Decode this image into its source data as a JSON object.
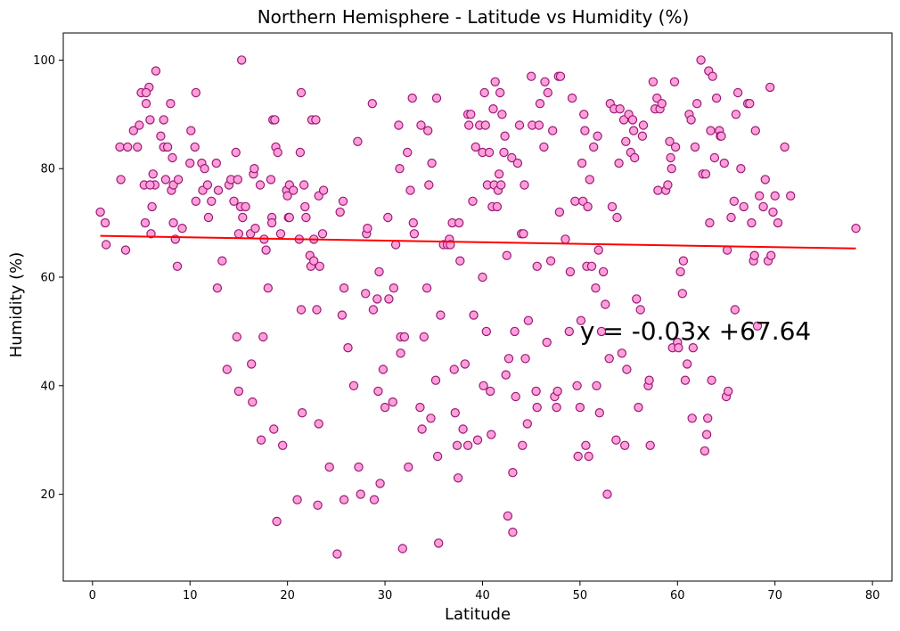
{
  "chart_data": {
    "type": "scatter",
    "title": "Northern Hemisphere - Latitude vs Humidity (%)",
    "xlabel": "Latitude",
    "ylabel": "Humidity (%)",
    "xlim": [
      -3,
      82
    ],
    "ylim": [
      4,
      105
    ],
    "xticks": [
      0,
      10,
      20,
      30,
      40,
      50,
      60,
      70,
      80
    ],
    "yticks": [
      20,
      40,
      60,
      80,
      100
    ],
    "grid": false,
    "marker": {
      "face": "#ff9fd8",
      "edge": "#9a1a7a"
    },
    "regression": {
      "slope": -0.03,
      "intercept": 67.64,
      "x_range": [
        0.8,
        78.3
      ],
      "color": "#ff0000"
    },
    "annotation": {
      "text": "y = -0.03x +67.64",
      "x": 50,
      "y": 50
    },
    "points": [
      [
        0.8,
        72
      ],
      [
        1.3,
        70
      ],
      [
        1.4,
        66
      ],
      [
        2.8,
        84
      ],
      [
        2.9,
        78
      ],
      [
        3.4,
        65
      ],
      [
        3.6,
        84
      ],
      [
        4.2,
        87
      ],
      [
        4.6,
        84
      ],
      [
        4.8,
        88
      ],
      [
        5.0,
        94
      ],
      [
        5.3,
        77
      ],
      [
        5.5,
        92
      ],
      [
        5.8,
        95
      ],
      [
        5.9,
        89
      ],
      [
        6.1,
        73
      ],
      [
        6.2,
        79
      ],
      [
        6.4,
        77
      ],
      [
        6.5,
        98
      ],
      [
        5.5,
        94
      ],
      [
        5.4,
        70
      ],
      [
        6.0,
        68
      ],
      [
        5.9,
        77
      ],
      [
        7.0,
        86
      ],
      [
        7.3,
        84
      ],
      [
        7.3,
        89
      ],
      [
        7.5,
        78
      ],
      [
        7.7,
        84
      ],
      [
        8.0,
        92
      ],
      [
        8.1,
        76
      ],
      [
        8.2,
        82
      ],
      [
        8.3,
        77
      ],
      [
        8.3,
        70
      ],
      [
        8.5,
        67
      ],
      [
        8.7,
        62
      ],
      [
        8.8,
        78
      ],
      [
        9.2,
        69
      ],
      [
        10.0,
        81
      ],
      [
        10.1,
        87
      ],
      [
        10.5,
        84
      ],
      [
        10.6,
        74
      ],
      [
        10.6,
        94
      ],
      [
        11.2,
        81
      ],
      [
        11.3,
        76
      ],
      [
        11.5,
        80
      ],
      [
        11.8,
        77
      ],
      [
        11.9,
        71
      ],
      [
        12.2,
        74
      ],
      [
        12.7,
        81
      ],
      [
        12.9,
        76
      ],
      [
        12.8,
        58
      ],
      [
        13.3,
        63
      ],
      [
        13.8,
        43
      ],
      [
        14.0,
        77
      ],
      [
        14.2,
        78
      ],
      [
        14.5,
        74
      ],
      [
        14.7,
        83
      ],
      [
        14.9,
        78
      ],
      [
        14.8,
        49
      ],
      [
        15.0,
        39
      ],
      [
        15.0,
        68
      ],
      [
        15.2,
        73
      ],
      [
        15.4,
        71
      ],
      [
        15.3,
        100
      ],
      [
        15.7,
        73
      ],
      [
        16.2,
        68
      ],
      [
        16.3,
        44
      ],
      [
        16.4,
        37
      ],
      [
        16.5,
        79
      ],
      [
        16.6,
        80
      ],
      [
        16.7,
        69
      ],
      [
        17.2,
        77
      ],
      [
        17.3,
        30
      ],
      [
        17.5,
        49
      ],
      [
        17.6,
        67
      ],
      [
        17.8,
        65
      ],
      [
        18.0,
        58
      ],
      [
        18.3,
        78
      ],
      [
        18.4,
        71
      ],
      [
        18.4,
        70
      ],
      [
        18.5,
        89
      ],
      [
        18.7,
        89
      ],
      [
        18.6,
        32
      ],
      [
        18.8,
        84
      ],
      [
        18.9,
        15
      ],
      [
        19.0,
        83
      ],
      [
        19.3,
        68
      ],
      [
        19.5,
        29
      ],
      [
        19.9,
        76
      ],
      [
        20.0,
        75
      ],
      [
        20.1,
        71
      ],
      [
        20.2,
        71
      ],
      [
        20.2,
        77
      ],
      [
        20.6,
        76
      ],
      [
        21.0,
        19
      ],
      [
        21.2,
        67
      ],
      [
        21.3,
        83
      ],
      [
        21.4,
        94
      ],
      [
        21.4,
        54
      ],
      [
        21.5,
        35
      ],
      [
        21.7,
        77
      ],
      [
        21.8,
        73
      ],
      [
        21.9,
        71
      ],
      [
        22.3,
        64
      ],
      [
        22.4,
        62
      ],
      [
        22.5,
        89
      ],
      [
        22.7,
        67
      ],
      [
        22.7,
        63
      ],
      [
        22.9,
        89
      ],
      [
        23.0,
        54
      ],
      [
        23.1,
        18
      ],
      [
        23.2,
        33
      ],
      [
        23.2,
        75
      ],
      [
        23.3,
        62
      ],
      [
        23.6,
        68
      ],
      [
        23.7,
        76
      ],
      [
        24.3,
        25
      ],
      [
        25.1,
        9
      ],
      [
        25.4,
        72
      ],
      [
        25.6,
        53
      ],
      [
        25.7,
        74
      ],
      [
        25.8,
        19
      ],
      [
        25.8,
        58
      ],
      [
        26.2,
        47
      ],
      [
        26.8,
        40
      ],
      [
        27.2,
        85
      ],
      [
        27.3,
        25
      ],
      [
        27.5,
        20
      ],
      [
        28.0,
        57
      ],
      [
        28.1,
        68
      ],
      [
        28.2,
        69
      ],
      [
        28.7,
        92
      ],
      [
        28.8,
        54
      ],
      [
        28.9,
        19
      ],
      [
        29.2,
        56
      ],
      [
        29.3,
        39
      ],
      [
        29.4,
        61
      ],
      [
        29.5,
        22
      ],
      [
        29.8,
        43
      ],
      [
        30.0,
        36
      ],
      [
        30.3,
        71
      ],
      [
        30.4,
        56
      ],
      [
        30.8,
        37
      ],
      [
        30.9,
        58
      ],
      [
        31.1,
        66
      ],
      [
        31.4,
        88
      ],
      [
        31.5,
        80
      ],
      [
        31.6,
        46
      ],
      [
        31.6,
        49
      ],
      [
        31.8,
        10
      ],
      [
        32.0,
        49
      ],
      [
        32.3,
        83
      ],
      [
        32.4,
        25
      ],
      [
        32.6,
        76
      ],
      [
        32.8,
        93
      ],
      [
        32.9,
        70
      ],
      [
        33.0,
        68
      ],
      [
        33.6,
        36
      ],
      [
        33.7,
        88
      ],
      [
        33.8,
        32
      ],
      [
        34.0,
        49
      ],
      [
        34.3,
        58
      ],
      [
        34.4,
        87
      ],
      [
        34.5,
        77
      ],
      [
        34.7,
        34
      ],
      [
        34.8,
        81
      ],
      [
        35.2,
        41
      ],
      [
        35.3,
        93
      ],
      [
        35.4,
        27
      ],
      [
        35.5,
        11
      ],
      [
        35.7,
        53
      ],
      [
        36.0,
        66
      ],
      [
        36.4,
        66
      ],
      [
        36.6,
        67
      ],
      [
        36.7,
        66
      ],
      [
        36.9,
        70
      ],
      [
        37.1,
        43
      ],
      [
        37.2,
        35
      ],
      [
        37.4,
        29
      ],
      [
        37.5,
        23
      ],
      [
        37.6,
        70
      ],
      [
        37.7,
        63
      ],
      [
        38.0,
        32
      ],
      [
        38.2,
        44
      ],
      [
        38.5,
        29
      ],
      [
        38.5,
        90
      ],
      [
        38.6,
        88
      ],
      [
        38.8,
        90
      ],
      [
        39.0,
        74
      ],
      [
        39.1,
        53
      ],
      [
        39.3,
        84
      ],
      [
        39.5,
        30
      ],
      [
        39.7,
        88
      ],
      [
        40.0,
        83
      ],
      [
        40.0,
        60
      ],
      [
        40.1,
        40
      ],
      [
        40.2,
        94
      ],
      [
        40.3,
        88
      ],
      [
        40.4,
        50
      ],
      [
        40.5,
        77
      ],
      [
        40.7,
        83
      ],
      [
        40.8,
        39
      ],
      [
        40.9,
        31
      ],
      [
        41.0,
        73
      ],
      [
        41.1,
        91
      ],
      [
        41.2,
        77
      ],
      [
        41.3,
        96
      ],
      [
        41.5,
        73
      ],
      [
        41.6,
        76
      ],
      [
        41.7,
        79
      ],
      [
        41.8,
        94
      ],
      [
        41.9,
        77
      ],
      [
        42.0,
        90
      ],
      [
        42.2,
        83
      ],
      [
        42.3,
        86
      ],
      [
        42.4,
        42
      ],
      [
        42.5,
        64
      ],
      [
        42.6,
        16
      ],
      [
        42.7,
        45
      ],
      [
        43.0,
        82
      ],
      [
        43.1,
        13
      ],
      [
        43.1,
        24
      ],
      [
        43.3,
        50
      ],
      [
        43.4,
        38
      ],
      [
        43.6,
        81
      ],
      [
        43.8,
        88
      ],
      [
        44.0,
        68
      ],
      [
        44.1,
        29
      ],
      [
        44.2,
        68
      ],
      [
        44.3,
        77
      ],
      [
        44.4,
        45
      ],
      [
        44.6,
        33
      ],
      [
        44.7,
        52
      ],
      [
        45.0,
        97
      ],
      [
        45.1,
        88
      ],
      [
        45.5,
        39
      ],
      [
        45.6,
        36
      ],
      [
        45.6,
        62
      ],
      [
        45.8,
        88
      ],
      [
        45.9,
        92
      ],
      [
        46.3,
        84
      ],
      [
        46.4,
        96
      ],
      [
        46.6,
        48
      ],
      [
        46.7,
        94
      ],
      [
        47.0,
        63
      ],
      [
        47.2,
        87
      ],
      [
        47.4,
        38
      ],
      [
        47.6,
        36
      ],
      [
        47.7,
        39
      ],
      [
        47.8,
        97
      ],
      [
        47.9,
        72
      ],
      [
        48.0,
        97
      ],
      [
        48.5,
        67
      ],
      [
        48.9,
        50
      ],
      [
        49.0,
        61
      ],
      [
        49.2,
        93
      ],
      [
        49.5,
        74
      ],
      [
        49.7,
        40
      ],
      [
        49.8,
        27
      ],
      [
        50.0,
        36
      ],
      [
        50.1,
        52
      ],
      [
        50.2,
        81
      ],
      [
        50.3,
        74
      ],
      [
        50.4,
        90
      ],
      [
        50.5,
        87
      ],
      [
        50.6,
        29
      ],
      [
        50.7,
        62
      ],
      [
        50.8,
        73
      ],
      [
        50.9,
        27
      ],
      [
        51.0,
        78
      ],
      [
        51.2,
        62
      ],
      [
        51.4,
        84
      ],
      [
        51.6,
        58
      ],
      [
        51.7,
        40
      ],
      [
        51.8,
        86
      ],
      [
        51.9,
        65
      ],
      [
        52.0,
        35
      ],
      [
        52.2,
        50
      ],
      [
        52.4,
        61
      ],
      [
        52.6,
        55
      ],
      [
        52.8,
        20
      ],
      [
        53.0,
        45
      ],
      [
        53.1,
        92
      ],
      [
        53.3,
        73
      ],
      [
        53.5,
        91
      ],
      [
        53.7,
        30
      ],
      [
        53.8,
        71
      ],
      [
        54.0,
        81
      ],
      [
        54.1,
        91
      ],
      [
        54.3,
        46
      ],
      [
        54.5,
        89
      ],
      [
        54.6,
        29
      ],
      [
        54.7,
        85
      ],
      [
        54.8,
        43
      ],
      [
        55.0,
        90
      ],
      [
        55.2,
        83
      ],
      [
        55.4,
        89
      ],
      [
        55.5,
        87
      ],
      [
        55.6,
        82
      ],
      [
        55.8,
        56
      ],
      [
        56.0,
        36
      ],
      [
        56.2,
        54
      ],
      [
        56.4,
        86
      ],
      [
        56.5,
        88
      ],
      [
        57.0,
        40
      ],
      [
        57.1,
        41
      ],
      [
        57.2,
        29
      ],
      [
        57.5,
        96
      ],
      [
        57.7,
        91
      ],
      [
        57.9,
        93
      ],
      [
        58.0,
        76
      ],
      [
        58.2,
        91
      ],
      [
        58.4,
        92
      ],
      [
        58.8,
        76
      ],
      [
        59.0,
        77
      ],
      [
        59.2,
        85
      ],
      [
        59.3,
        82
      ],
      [
        59.4,
        80
      ],
      [
        59.5,
        47
      ],
      [
        59.7,
        96
      ],
      [
        59.8,
        84
      ],
      [
        60.0,
        48
      ],
      [
        60.1,
        47
      ],
      [
        60.3,
        61
      ],
      [
        60.5,
        57
      ],
      [
        60.6,
        63
      ],
      [
        60.8,
        41
      ],
      [
        61.0,
        44
      ],
      [
        61.2,
        90
      ],
      [
        61.4,
        89
      ],
      [
        61.5,
        34
      ],
      [
        61.6,
        47
      ],
      [
        61.8,
        84
      ],
      [
        62.0,
        92
      ],
      [
        62.4,
        100
      ],
      [
        62.6,
        79
      ],
      [
        62.8,
        28
      ],
      [
        62.9,
        79
      ],
      [
        63.0,
        31
      ],
      [
        63.1,
        34
      ],
      [
        63.2,
        98
      ],
      [
        63.3,
        70
      ],
      [
        63.4,
        87
      ],
      [
        63.5,
        41
      ],
      [
        63.6,
        97
      ],
      [
        63.8,
        82
      ],
      [
        64.0,
        93
      ],
      [
        64.3,
        87
      ],
      [
        64.4,
        86
      ],
      [
        64.5,
        86
      ],
      [
        64.8,
        81
      ],
      [
        65.0,
        38
      ],
      [
        65.1,
        65
      ],
      [
        65.2,
        39
      ],
      [
        65.5,
        71
      ],
      [
        65.8,
        74
      ],
      [
        65.9,
        54
      ],
      [
        66.0,
        90
      ],
      [
        66.2,
        94
      ],
      [
        66.5,
        80
      ],
      [
        66.8,
        73
      ],
      [
        67.2,
        92
      ],
      [
        67.4,
        92
      ],
      [
        67.6,
        70
      ],
      [
        67.8,
        63
      ],
      [
        67.9,
        64
      ],
      [
        68.0,
        87
      ],
      [
        68.2,
        51
      ],
      [
        68.4,
        75
      ],
      [
        68.8,
        73
      ],
      [
        69.0,
        78
      ],
      [
        69.3,
        63
      ],
      [
        69.5,
        95
      ],
      [
        69.6,
        64
      ],
      [
        69.8,
        72
      ],
      [
        70.0,
        75
      ],
      [
        70.3,
        70
      ],
      [
        71.0,
        84
      ],
      [
        71.6,
        75
      ],
      [
        78.3,
        69
      ]
    ]
  }
}
